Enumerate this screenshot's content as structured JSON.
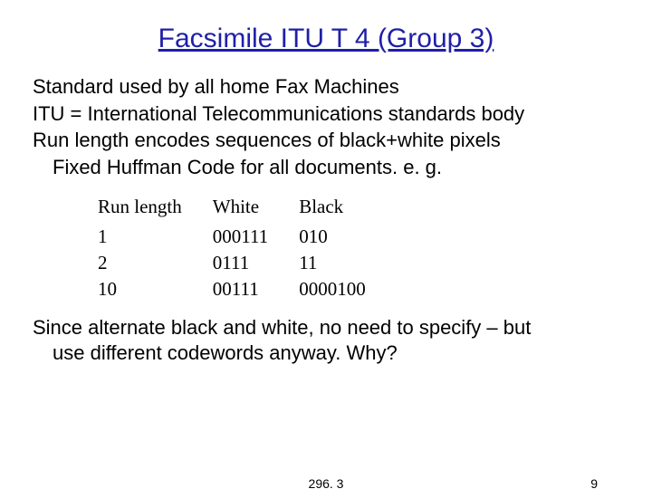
{
  "title": "Facsimile ITU T 4 (Group 3)",
  "title_color": "#1f1fa8",
  "title_fontsize": 30,
  "body_fontsize": 22,
  "body_font": "Comic Sans MS",
  "table_font": "Times New Roman",
  "table_fontsize": 21,
  "background_color": "#ffffff",
  "text_color": "#000000",
  "lines": {
    "l1": "Standard used by all home Fax Machines",
    "l2": "ITU = International Telecommunications standards body",
    "l3": "Run length encodes sequences of black+white pixels",
    "l4": "Fixed Huffman Code for all documents.  e. g."
  },
  "table": {
    "headers": {
      "c0": "Run length",
      "c1": "White",
      "c2": "Black"
    },
    "rows": [
      {
        "c0": "1",
        "c1": "000111",
        "c2": "010"
      },
      {
        "c0": "2",
        "c1": "0111",
        "c2": "11"
      },
      {
        "c0": "10",
        "c1": "00111",
        "c2": "0000100"
      }
    ]
  },
  "closing": {
    "line1": "Since alternate black and white, no need to specify – but",
    "line2": "use different codewords anyway.  Why?"
  },
  "footer": {
    "center": "296. 3",
    "page": "9"
  }
}
